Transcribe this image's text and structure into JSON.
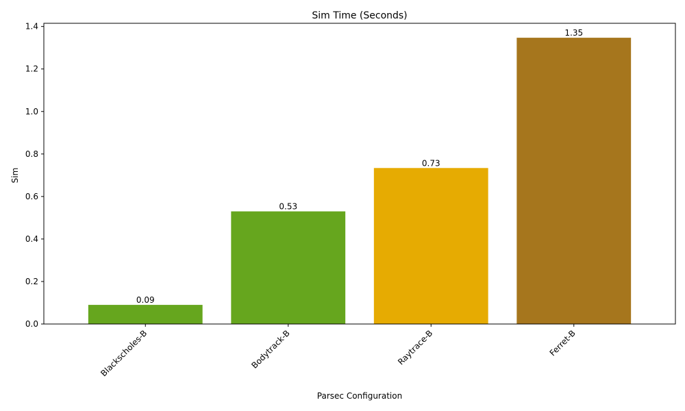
{
  "chart_data": {
    "type": "bar",
    "title": "Sim Time (Seconds)",
    "xlabel": "Parsec Configuration",
    "ylabel": "Sim",
    "categories": [
      "Blackscholes-B",
      "Bodytrack-B",
      "Raytrace-B",
      "Ferret-B"
    ],
    "values": [
      0.09,
      0.53,
      0.734,
      1.347
    ],
    "value_labels": [
      "0.09",
      "0.53",
      "0.73",
      "1.35"
    ],
    "colors": [
      "#66a61e",
      "#66a61e",
      "#e6ab02",
      "#a6761d"
    ],
    "ylim": [
      0,
      1.415
    ],
    "yticks": [
      "0.0",
      "0.2",
      "0.4",
      "0.6",
      "0.8",
      "1.0",
      "1.2",
      "1.4"
    ],
    "grid": false,
    "legend": "none"
  }
}
